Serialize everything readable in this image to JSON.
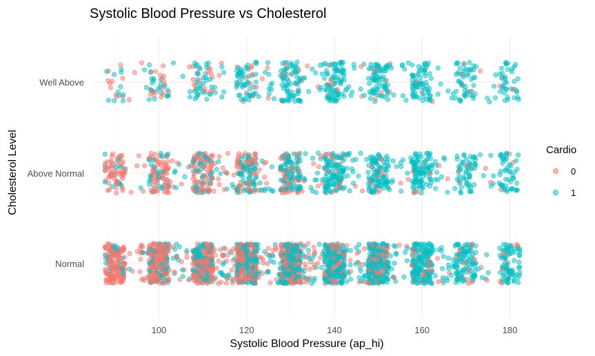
{
  "chart_data": {
    "type": "scatter",
    "title": "Systolic Blood Pressure vs Cholesterol",
    "xlabel": "Systolic Blood Pressure (ap_hi)",
    "ylabel": "Cholesterol Level",
    "xlim": [
      85,
      184
    ],
    "x_ticks": [
      100,
      120,
      140,
      160,
      180
    ],
    "categories": [
      "Normal",
      "Above Normal",
      "Well Above"
    ],
    "jitter": true,
    "grid": true,
    "legend": {
      "title": "Cardio",
      "position": "right",
      "entries": [
        {
          "label": "0",
          "color": "#F8766D"
        },
        {
          "label": "1",
          "color": "#00BFC4"
        }
      ]
    },
    "series": [
      {
        "name": "0",
        "color": "#F8766D",
        "clusters": {
          "Normal": [
            [
              90,
              130
            ],
            [
              100,
              140
            ],
            [
              110,
              150
            ],
            [
              120,
              140
            ],
            [
              130,
              115
            ],
            [
              140,
              65
            ],
            [
              150,
              50
            ],
            [
              160,
              25
            ],
            [
              170,
              15
            ],
            [
              180,
              10
            ],
            [
              95,
              25
            ],
            [
              105,
              30
            ],
            [
              115,
              40
            ],
            [
              125,
              38
            ],
            [
              135,
              30
            ],
            [
              145,
              20
            ],
            [
              155,
              10
            ],
            [
              165,
              6
            ],
            [
              175,
              5
            ]
          ],
          "Above Normal": [
            [
              90,
              55
            ],
            [
              100,
              65
            ],
            [
              110,
              70
            ],
            [
              120,
              55
            ],
            [
              130,
              38
            ],
            [
              140,
              15
            ],
            [
              150,
              12
            ],
            [
              160,
              5
            ],
            [
              170,
              4
            ],
            [
              180,
              3
            ],
            [
              95,
              10
            ],
            [
              105,
              12
            ],
            [
              115,
              16
            ],
            [
              125,
              14
            ],
            [
              135,
              10
            ],
            [
              145,
              6
            ],
            [
              155,
              3
            ],
            [
              165,
              2
            ],
            [
              175,
              2
            ]
          ],
          "Well Above": [
            [
              90,
              10
            ],
            [
              100,
              14
            ],
            [
              110,
              14
            ],
            [
              120,
              12
            ],
            [
              130,
              8
            ],
            [
              140,
              6
            ],
            [
              150,
              4
            ],
            [
              160,
              2
            ],
            [
              170,
              3
            ],
            [
              180,
              3
            ],
            [
              95,
              3
            ],
            [
              105,
              4
            ],
            [
              115,
              4
            ],
            [
              125,
              3
            ],
            [
              135,
              3
            ],
            [
              145,
              3
            ],
            [
              155,
              2
            ],
            [
              165,
              1
            ],
            [
              175,
              2
            ]
          ]
        }
      },
      {
        "name": "1",
        "color": "#00BFC4",
        "clusters": {
          "Normal": [
            [
              90,
              25
            ],
            [
              100,
              55
            ],
            [
              110,
              80
            ],
            [
              120,
              120
            ],
            [
              130,
              150
            ],
            [
              140,
              160
            ],
            [
              150,
              150
            ],
            [
              160,
              140
            ],
            [
              170,
              80
            ],
            [
              180,
              70
            ],
            [
              95,
              8
            ],
            [
              105,
              15
            ],
            [
              115,
              25
            ],
            [
              125,
              30
            ],
            [
              135,
              35
            ],
            [
              145,
              40
            ],
            [
              155,
              30
            ],
            [
              165,
              28
            ],
            [
              175,
              14
            ]
          ],
          "Above Normal": [
            [
              90,
              12
            ],
            [
              100,
              25
            ],
            [
              110,
              38
            ],
            [
              120,
              55
            ],
            [
              130,
              80
            ],
            [
              140,
              95
            ],
            [
              150,
              90
            ],
            [
              160,
              85
            ],
            [
              170,
              50
            ],
            [
              180,
              45
            ],
            [
              95,
              5
            ],
            [
              105,
              8
            ],
            [
              115,
              12
            ],
            [
              125,
              18
            ],
            [
              135,
              20
            ],
            [
              145,
              25
            ],
            [
              155,
              22
            ],
            [
              165,
              15
            ],
            [
              175,
              10
            ]
          ],
          "Well Above": [
            [
              90,
              10
            ],
            [
              100,
              18
            ],
            [
              110,
              32
            ],
            [
              120,
              45
            ],
            [
              130,
              65
            ],
            [
              140,
              70
            ],
            [
              150,
              65
            ],
            [
              160,
              60
            ],
            [
              170,
              40
            ],
            [
              180,
              35
            ],
            [
              95,
              4
            ],
            [
              105,
              6
            ],
            [
              115,
              10
            ],
            [
              125,
              14
            ],
            [
              135,
              15
            ],
            [
              145,
              18
            ],
            [
              155,
              15
            ],
            [
              165,
              12
            ],
            [
              175,
              9
            ]
          ]
        }
      }
    ]
  }
}
